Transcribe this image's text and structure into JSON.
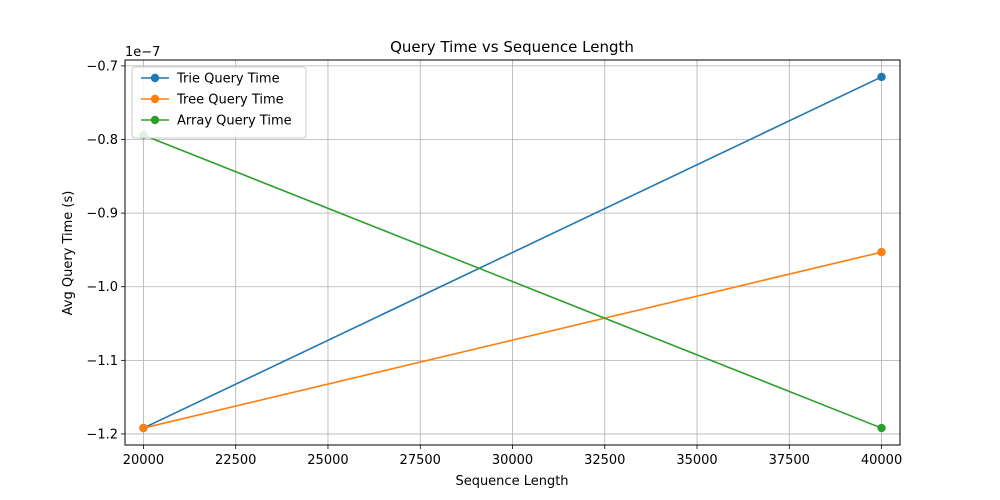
{
  "chart_data": {
    "type": "line",
    "title": "Query Time vs Sequence Length",
    "xlabel": "Sequence Length",
    "ylabel": "Avg Query Time (s)",
    "y_offset_text": "1e−7",
    "x": [
      20000,
      40000
    ],
    "xlim": [
      19500,
      40500
    ],
    "ylim": [
      -1.215,
      -0.692
    ],
    "x_ticks": [
      20000,
      22500,
      25000,
      27500,
      30000,
      32500,
      35000,
      37500,
      40000
    ],
    "x_tick_labels": [
      "20000",
      "22500",
      "25000",
      "27500",
      "30000",
      "32500",
      "35000",
      "37500",
      "40000"
    ],
    "y_ticks": [
      -1.2,
      -1.1,
      -1.0,
      -0.9,
      -0.8,
      -0.7
    ],
    "y_tick_labels": [
      "−1.2",
      "−1.1",
      "−1.0",
      "−0.9",
      "−0.8",
      "−0.7"
    ],
    "grid": true,
    "legend_position": "upper-left",
    "series": [
      {
        "name": "Trie Query Time",
        "color": "#1f77b4",
        "values": [
          -1.192,
          -0.715
        ]
      },
      {
        "name": "Tree Query Time",
        "color": "#ff7f0e",
        "values": [
          -1.192,
          -0.953
        ]
      },
      {
        "name": "Array Query Time",
        "color": "#2ca02c",
        "values": [
          -0.794,
          -1.192
        ]
      }
    ]
  }
}
